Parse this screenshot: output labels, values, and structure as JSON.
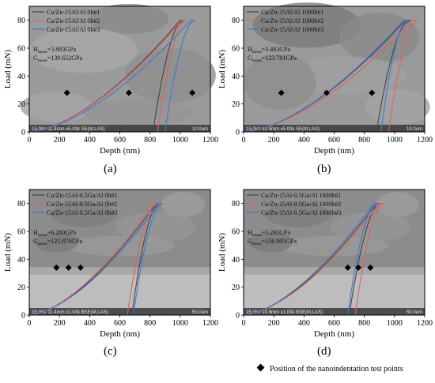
{
  "footnote": "Position of the nanoindentation test points",
  "chart_data": [
    {
      "type": "line",
      "panel_label": "(a)",
      "xlabel": "Depth (nm)",
      "ylabel": "Load (mN)",
      "xlim": [
        0,
        1200
      ],
      "ylim": [
        0,
        90
      ],
      "xticks": [
        0,
        200,
        400,
        600,
        800,
        1000,
        1200
      ],
      "yticks": [
        0,
        20,
        40,
        60,
        80
      ],
      "sem_caption": "15.0kV 11.4mm x5.00k SE(M,LAS)",
      "sem_scale": "10.0um",
      "stat_lines": [
        {
          "symbol": "H",
          "sub": "mean",
          "value": "=3.883GPa"
        },
        {
          "symbol": "G",
          "sub": "mean",
          "value": "=139.652GPa"
        }
      ],
      "markers": [
        [
          250,
          28
        ],
        [
          660,
          28
        ],
        [
          1080,
          28
        ]
      ],
      "series": [
        {
          "name": "Cu/Zn-15Al/Al 0h#1",
          "color": "#444444",
          "max_load": 80,
          "max_depth": 1000,
          "hold_end": 1020,
          "final_depth": 820
        },
        {
          "name": "Cu/Zn-15Al/Al 0h#2",
          "color": "#e06060",
          "max_load": 80,
          "max_depth": 1010,
          "hold_end": 1035,
          "final_depth": 850
        },
        {
          "name": "Cu/Zn-15Al/Al 0h#3",
          "color": "#4477cc",
          "max_load": 80,
          "max_depth": 1070,
          "hold_end": 1095,
          "final_depth": 900
        }
      ]
    },
    {
      "type": "line",
      "panel_label": "(b)",
      "xlabel": "Depth (nm)",
      "ylabel": "Load (mN)",
      "xlim": [
        0,
        1200
      ],
      "ylim": [
        0,
        90
      ],
      "xticks": [
        0,
        200,
        400,
        600,
        800,
        1000,
        1200
      ],
      "yticks": [
        0,
        20,
        40,
        60,
        80
      ],
      "sem_caption": "15.0kV 10.4mm x5.00k SE(M,LAS)",
      "sem_scale": "10.0um",
      "stat_lines": [
        {
          "symbol": "H",
          "sub": "mean",
          "value": "=3.483GPa"
        },
        {
          "symbol": "G",
          "sub": "mean",
          "value": "=123.781GPa"
        }
      ],
      "markers": [
        [
          250,
          28
        ],
        [
          550,
          28
        ],
        [
          850,
          28
        ]
      ],
      "series": [
        {
          "name": "Cu/Zn-15Al/Al 1000h#1",
          "color": "#444444",
          "max_load": 80,
          "max_depth": 1070,
          "hold_end": 1100,
          "final_depth": 880
        },
        {
          "name": "Cu/Zn-15Al/Al 1000h#2",
          "color": "#e06060",
          "max_load": 80,
          "max_depth": 1120,
          "hold_end": 1150,
          "final_depth": 960
        },
        {
          "name": "Cu/Zn-15Al/Al 1000h#3",
          "color": "#4477cc",
          "max_load": 80,
          "max_depth": 1060,
          "hold_end": 1085,
          "final_depth": 910
        }
      ]
    },
    {
      "type": "line",
      "panel_label": "(c)",
      "xlabel": "Depth (nm)",
      "ylabel": "Load (mN)",
      "xlim": [
        0,
        1200
      ],
      "ylim": [
        0,
        90
      ],
      "xticks": [
        0,
        200,
        400,
        600,
        800,
        1000,
        1200
      ],
      "yticks": [
        0,
        20,
        40,
        60,
        80
      ],
      "sem_caption": "15.0kV 11.4mm x1.00k BSE(M,LAS)",
      "sem_scale": "50.0um",
      "stat_lines": [
        {
          "symbol": "H",
          "sub": "mean",
          "value": "=6.280GPa"
        },
        {
          "symbol": "G",
          "sub": "mean",
          "value": "=125.870GPa"
        }
      ],
      "markers": [
        [
          180,
          34
        ],
        [
          260,
          34
        ],
        [
          340,
          34
        ]
      ],
      "series": [
        {
          "name": "Cu/Zn-15Al-0.5Ga/Al 0h#1",
          "color": "#444444",
          "max_load": 80,
          "max_depth": 840,
          "hold_end": 860,
          "final_depth": 680
        },
        {
          "name": "Cu/Zn-15Al-0.5Ga/Al 0h#2",
          "color": "#e06060",
          "max_load": 80,
          "max_depth": 820,
          "hold_end": 845,
          "final_depth": 650
        },
        {
          "name": "Cu/Zn-15Al-0.5Ga/Al 0h#3",
          "color": "#4477cc",
          "max_load": 80,
          "max_depth": 860,
          "hold_end": 880,
          "final_depth": 690
        }
      ]
    },
    {
      "type": "line",
      "panel_label": "(d)",
      "xlabel": "Depth (nm)",
      "ylabel": "Load (mN)",
      "xlim": [
        0,
        1200
      ],
      "ylim": [
        0,
        90
      ],
      "xticks": [
        0,
        200,
        400,
        600,
        800,
        1000,
        1200
      ],
      "yticks": [
        0,
        20,
        40,
        60,
        80
      ],
      "sem_caption": "15.0kV 10.9mm x1.00k BSE(M,LAS)",
      "sem_scale": "50.0um",
      "stat_lines": [
        {
          "symbol": "H",
          "sub": "mean",
          "value": "=5.203GPa"
        },
        {
          "symbol": "G",
          "sub": "mean",
          "value": "=156.905GPa"
        }
      ],
      "markers": [
        [
          690,
          34
        ],
        [
          760,
          34
        ],
        [
          840,
          34
        ]
      ],
      "series": [
        {
          "name": "Cu/Zn-15Al-0.5Ga/Al 1000h#1",
          "color": "#444444",
          "max_load": 80,
          "max_depth": 880,
          "hold_end": 905,
          "final_depth": 700
        },
        {
          "name": "Cu/Zn-15Al-0.5Ga/Al 1000h#2",
          "color": "#e06060",
          "max_load": 80,
          "max_depth": 900,
          "hold_end": 925,
          "final_depth": 740
        },
        {
          "name": "Cu/Zn-15Al-0.5Ga/Al 1000h#3",
          "color": "#4477cc",
          "max_load": 80,
          "max_depth": 860,
          "hold_end": 880,
          "final_depth": 690
        }
      ]
    }
  ]
}
